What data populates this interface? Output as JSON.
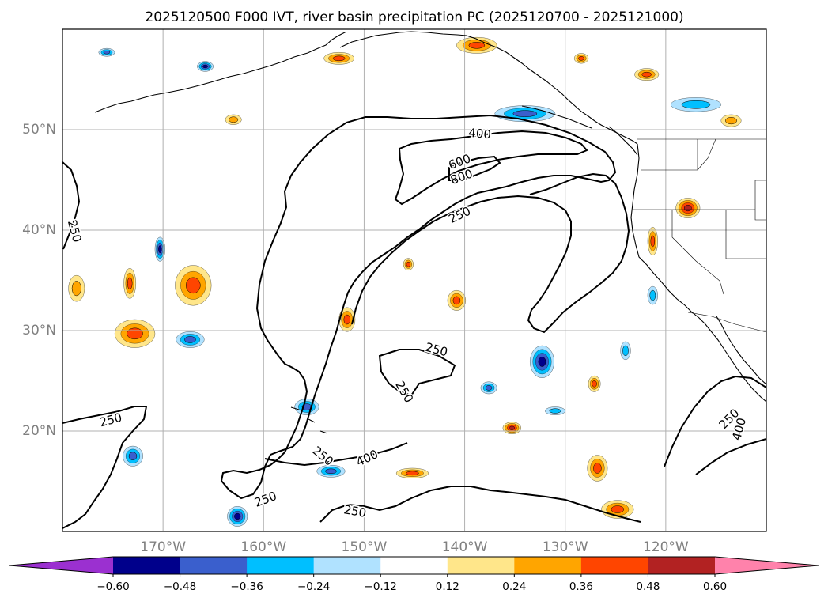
{
  "chart_data": {
    "type": "heatmap",
    "title": "2025120500 F000 IVT, river basin precipitation PC (2025120700 - 2025121000)",
    "projection": "cylindrical",
    "lon_range": [
      -180,
      -110
    ],
    "lat_range": [
      10,
      60
    ],
    "grid": true,
    "lon_ticks": [
      {
        "value": -170,
        "label": "170°W"
      },
      {
        "value": -160,
        "label": "160°W"
      },
      {
        "value": -150,
        "label": "150°W"
      },
      {
        "value": -140,
        "label": "140°W"
      },
      {
        "value": -130,
        "label": "130°W"
      },
      {
        "value": -120,
        "label": "120°W"
      }
    ],
    "lat_ticks": [
      {
        "value": 50,
        "label": "50°N"
      },
      {
        "value": 40,
        "label": "40°N"
      },
      {
        "value": 30,
        "label": "30°N"
      },
      {
        "value": 20,
        "label": "20°N"
      }
    ],
    "ivt_contour_levels": [
      250,
      400,
      600,
      800
    ],
    "ivt_contour_labels": [
      {
        "text": "400",
        "lon": -138.5,
        "lat": 49.6,
        "angle": 5
      },
      {
        "text": "600",
        "lon": -140.5,
        "lat": 46.8,
        "angle": -20
      },
      {
        "text": "800",
        "lon": -140.3,
        "lat": 45.3,
        "angle": -20
      },
      {
        "text": "250",
        "lon": -140.5,
        "lat": 41.5,
        "angle": -25
      },
      {
        "text": "250",
        "lon": -178.8,
        "lat": 39.9,
        "angle": 75
      },
      {
        "text": "250",
        "lon": -142.8,
        "lat": 28.1,
        "angle": 15
      },
      {
        "text": "250",
        "lon": -175.2,
        "lat": 21.1,
        "angle": -15
      },
      {
        "text": "250",
        "lon": -146.0,
        "lat": 23.9,
        "angle": 60
      },
      {
        "text": "250",
        "lon": -154.1,
        "lat": 17.5,
        "angle": 40
      },
      {
        "text": "400",
        "lon": -149.7,
        "lat": 17.3,
        "angle": -25
      },
      {
        "text": "250",
        "lon": -159.8,
        "lat": 13.2,
        "angle": -20
      },
      {
        "text": "250",
        "lon": -150.9,
        "lat": 12.0,
        "angle": 10
      },
      {
        "text": "250",
        "lon": -113.7,
        "lat": 21.2,
        "angle": -45
      },
      {
        "text": "400",
        "lon": -112.7,
        "lat": 20.2,
        "angle": -75
      }
    ],
    "pc_levels": [
      -0.6,
      -0.48,
      -0.36,
      -0.24,
      -0.12,
      0.12,
      0.24,
      0.36,
      0.48,
      0.6
    ],
    "colorbar": {
      "extend": "both",
      "tick_labels": [
        "−0.60",
        "−0.48",
        "−0.36",
        "−0.24",
        "−0.12",
        "0.12",
        "0.24",
        "0.36",
        "0.48",
        "0.60"
      ],
      "colors": [
        "#9b30d0",
        "#00008b",
        "#3a5fcd",
        "#00bfff",
        "#b0e2ff",
        "#ffffff",
        "#ffe68a",
        "#ffa500",
        "#ff4500",
        "#b22222",
        "#ff82ab"
      ]
    },
    "pc_features": [
      {
        "lon": -172.8,
        "lat": 29.7,
        "rx": 2.0,
        "ry": 1.4,
        "value": 0.4
      },
      {
        "lon": -167.0,
        "lat": 34.5,
        "rx": 1.8,
        "ry": 2.0,
        "value": 0.45
      },
      {
        "lon": -173.3,
        "lat": 34.7,
        "rx": 0.6,
        "ry": 1.5,
        "value": 0.36
      },
      {
        "lon": -178.6,
        "lat": 34.2,
        "rx": 0.8,
        "ry": 1.3,
        "value": 0.3
      },
      {
        "lon": -170.3,
        "lat": 38.1,
        "rx": 0.5,
        "ry": 1.2,
        "value": -0.5
      },
      {
        "lon": -167.3,
        "lat": 29.1,
        "rx": 1.4,
        "ry": 0.8,
        "value": -0.36
      },
      {
        "lon": -165.8,
        "lat": 56.3,
        "rx": 0.8,
        "ry": 0.5,
        "value": -0.5
      },
      {
        "lon": -175.6,
        "lat": 57.7,
        "rx": 0.8,
        "ry": 0.4,
        "value": -0.36
      },
      {
        "lon": -163.0,
        "lat": 51.0,
        "rx": 0.8,
        "ry": 0.5,
        "value": 0.3
      },
      {
        "lon": -152.5,
        "lat": 57.1,
        "rx": 1.5,
        "ry": 0.6,
        "value": 0.38
      },
      {
        "lon": -138.8,
        "lat": 58.4,
        "rx": 2.0,
        "ry": 0.8,
        "value": 0.42
      },
      {
        "lon": -128.4,
        "lat": 57.1,
        "rx": 0.7,
        "ry": 0.5,
        "value": 0.36
      },
      {
        "lon": -121.9,
        "lat": 55.5,
        "rx": 1.2,
        "ry": 0.6,
        "value": 0.36
      },
      {
        "lon": -117.0,
        "lat": 52.5,
        "rx": 2.5,
        "ry": 0.7,
        "value": -0.34
      },
      {
        "lon": -113.5,
        "lat": 50.9,
        "rx": 1.0,
        "ry": 0.6,
        "value": 0.33
      },
      {
        "lon": -134.0,
        "lat": 51.6,
        "rx": 3.0,
        "ry": 0.8,
        "value": -0.36
      },
      {
        "lon": -117.8,
        "lat": 42.2,
        "rx": 1.2,
        "ry": 1.0,
        "value": 0.48
      },
      {
        "lon": -121.3,
        "lat": 38.9,
        "rx": 0.5,
        "ry": 1.4,
        "value": 0.42
      },
      {
        "lon": -132.3,
        "lat": 26.9,
        "rx": 1.2,
        "ry": 1.6,
        "value": -0.55
      },
      {
        "lon": -140.8,
        "lat": 33.0,
        "rx": 0.9,
        "ry": 1.0,
        "value": 0.42
      },
      {
        "lon": -135.3,
        "lat": 20.3,
        "rx": 0.9,
        "ry": 0.6,
        "value": 0.48
      },
      {
        "lon": -126.8,
        "lat": 16.3,
        "rx": 1.0,
        "ry": 1.3,
        "value": 0.42
      },
      {
        "lon": -145.2,
        "lat": 15.8,
        "rx": 1.6,
        "ry": 0.5,
        "value": 0.38
      },
      {
        "lon": -124.8,
        "lat": 12.2,
        "rx": 1.6,
        "ry": 0.9,
        "value": 0.36
      },
      {
        "lon": -162.6,
        "lat": 11.5,
        "rx": 1.0,
        "ry": 1.0,
        "value": -0.5
      },
      {
        "lon": -153.3,
        "lat": 16.0,
        "rx": 1.4,
        "ry": 0.6,
        "value": -0.4
      },
      {
        "lon": -155.7,
        "lat": 22.4,
        "rx": 1.2,
        "ry": 0.8,
        "value": -0.36
      },
      {
        "lon": -173.0,
        "lat": 17.5,
        "rx": 1.0,
        "ry": 1.0,
        "value": -0.4
      },
      {
        "lon": -151.7,
        "lat": 31.1,
        "rx": 0.8,
        "ry": 1.2,
        "value": 0.38
      },
      {
        "lon": -127.1,
        "lat": 24.7,
        "rx": 0.6,
        "ry": 0.8,
        "value": 0.36
      },
      {
        "lon": -124.0,
        "lat": 28.0,
        "rx": 0.5,
        "ry": 0.9,
        "value": -0.34
      },
      {
        "lon": -121.3,
        "lat": 33.5,
        "rx": 0.5,
        "ry": 0.9,
        "value": -0.34
      },
      {
        "lon": -137.6,
        "lat": 24.3,
        "rx": 0.8,
        "ry": 0.6,
        "value": -0.4
      },
      {
        "lon": -131.0,
        "lat": 22.0,
        "rx": 1.0,
        "ry": 0.4,
        "value": -0.3
      },
      {
        "lon": -145.6,
        "lat": 36.6,
        "rx": 0.5,
        "ry": 0.6,
        "value": 0.36
      }
    ],
    "map_features": [
      "coastlines",
      "US state borders",
      "Canada–US border"
    ]
  }
}
